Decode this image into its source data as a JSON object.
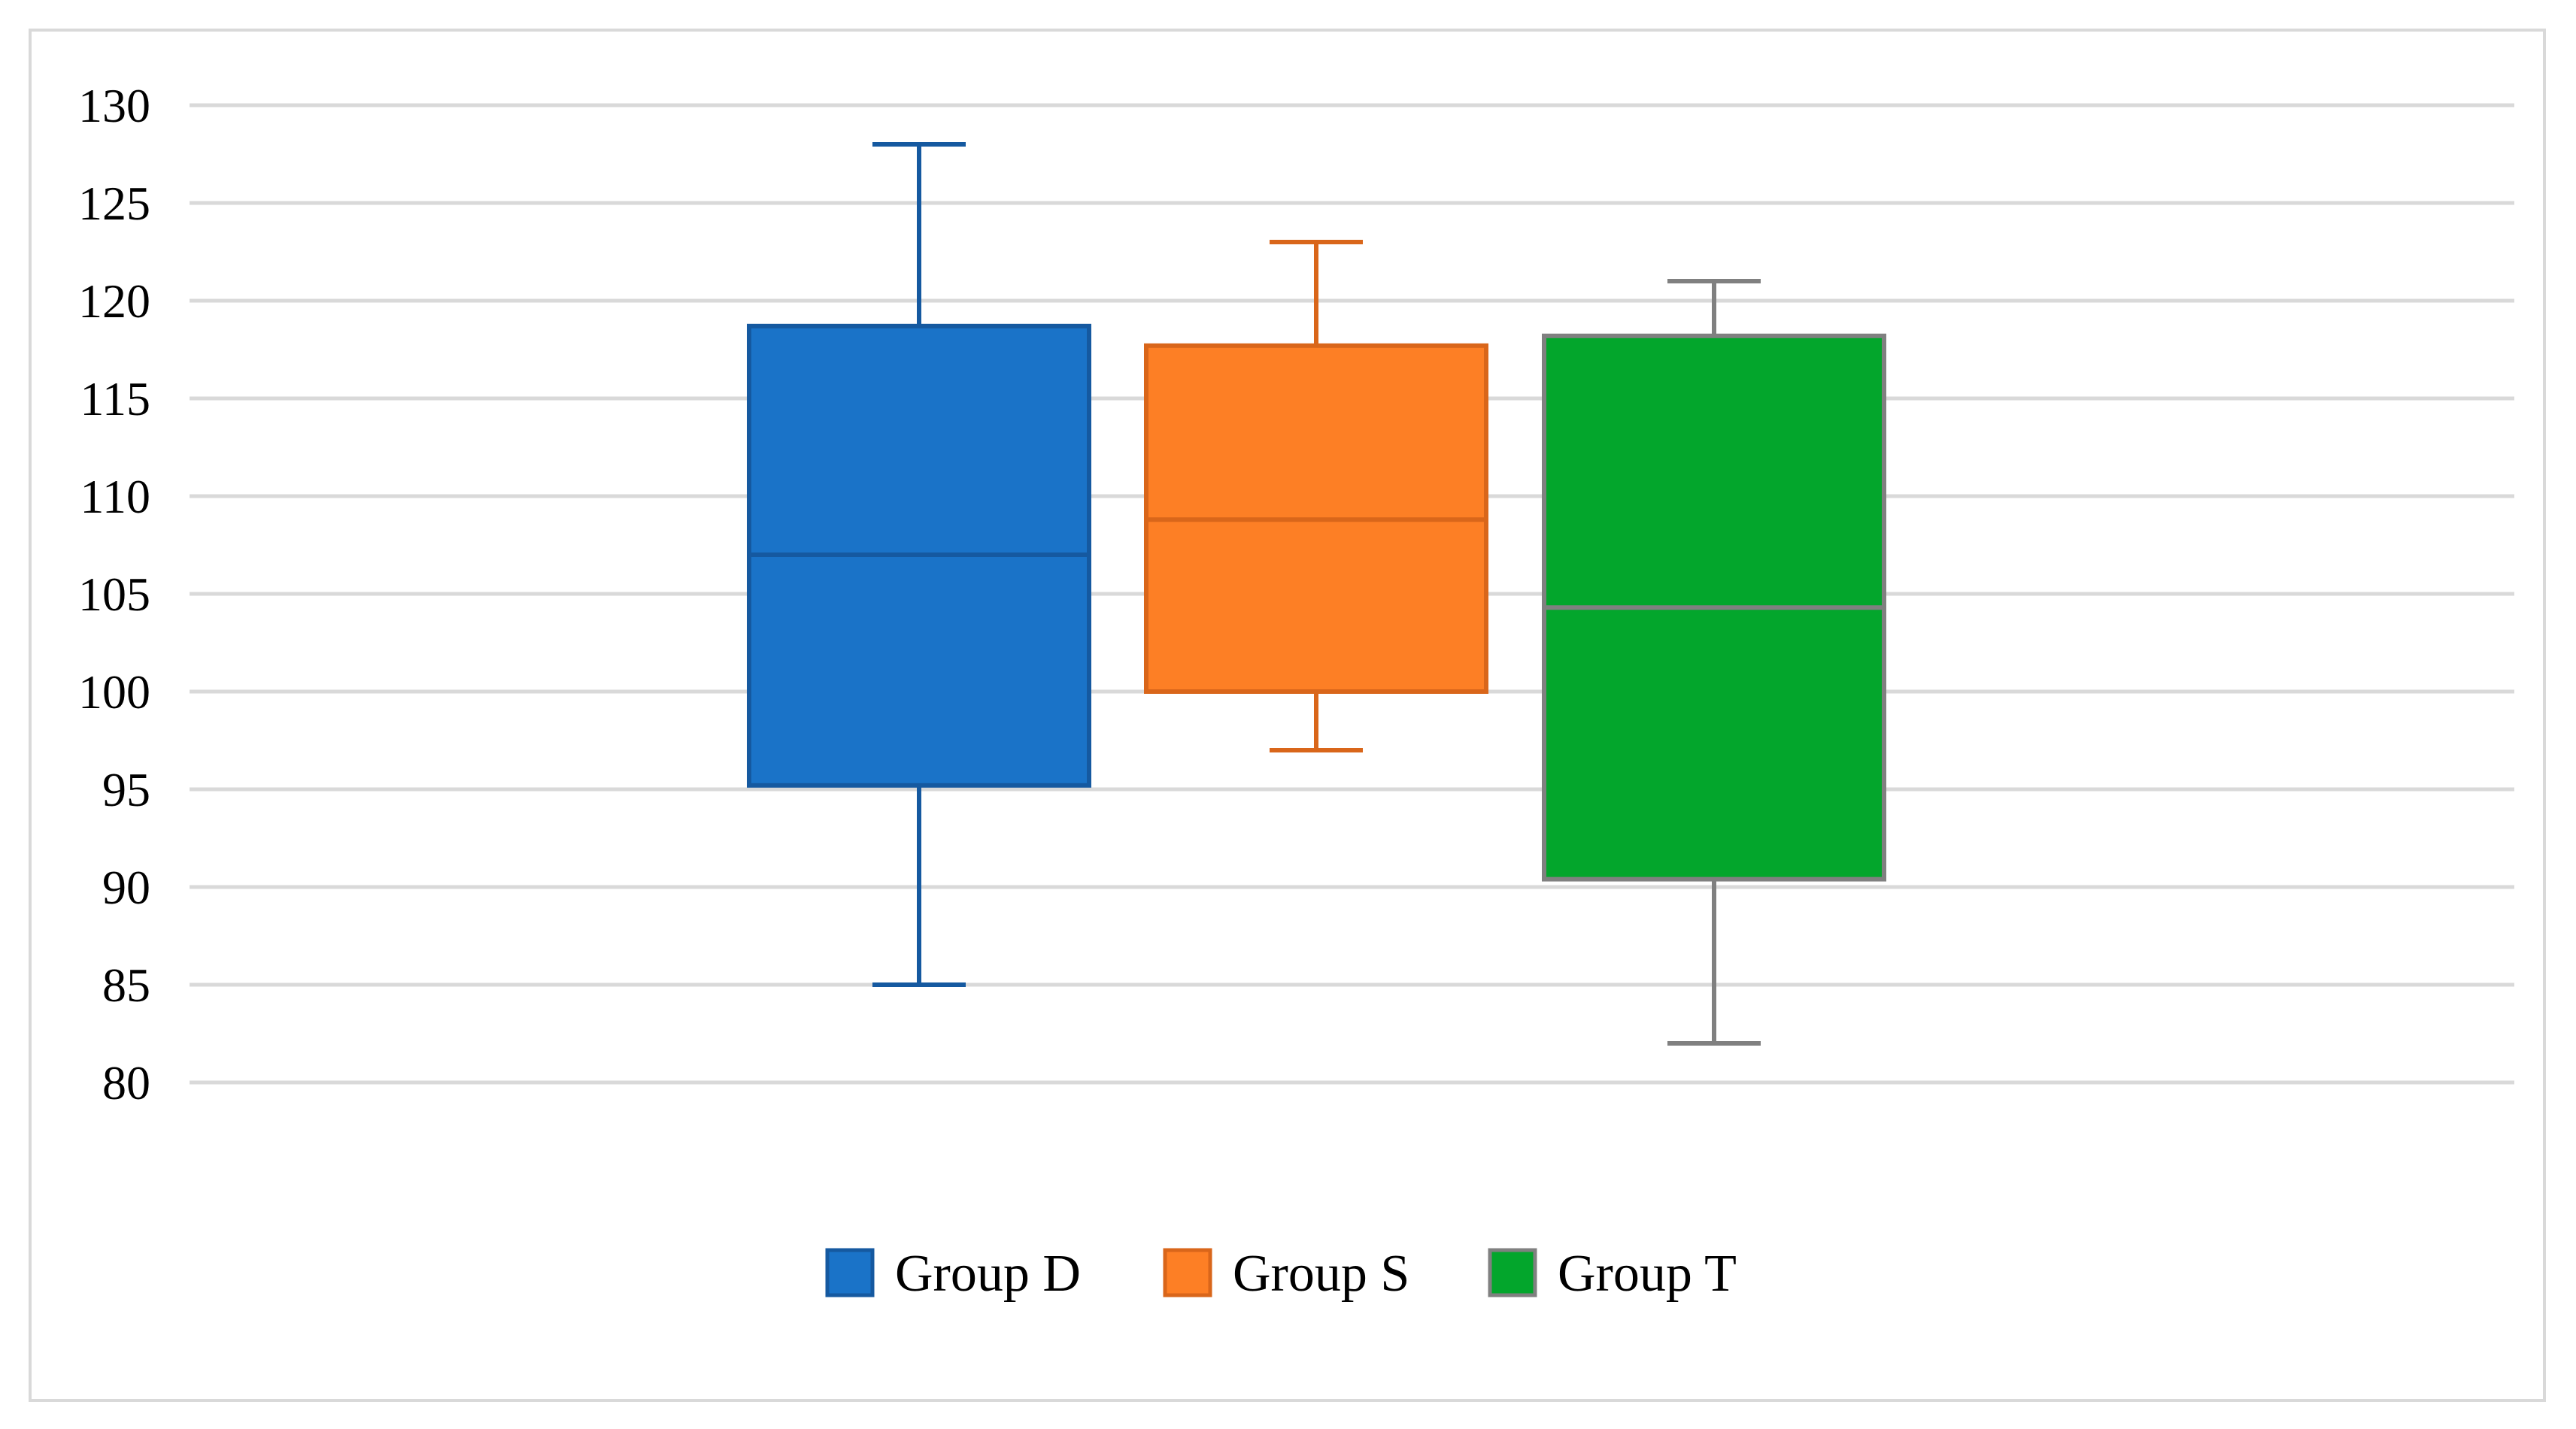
{
  "chart_data": {
    "type": "boxplot",
    "title": "",
    "xlabel": "",
    "ylabel": "",
    "ylim": [
      80,
      130
    ],
    "yticks": [
      80,
      85,
      90,
      95,
      100,
      105,
      110,
      115,
      120,
      125,
      130
    ],
    "grid": true,
    "legend_position": "bottom",
    "series": [
      {
        "name": "Group D",
        "min": 85,
        "q1": 95.2,
        "median": 107,
        "q3": 118.7,
        "max": 128,
        "color": "#1a73c8",
        "edge": "#1559a0"
      },
      {
        "name": "Group S",
        "min": 97,
        "q1": 100,
        "median": 108.8,
        "q3": 117.7,
        "max": 123,
        "color": "#fd7f25",
        "edge": "#d9661a"
      },
      {
        "name": "Group T",
        "min": 82,
        "q1": 90.4,
        "median": 104.3,
        "q3": 118.2,
        "max": 121,
        "color": "#03a62c",
        "edge": "#808080"
      }
    ]
  },
  "colors": {
    "grid": "#d9d9d9",
    "frame": "#d9d9d9"
  }
}
